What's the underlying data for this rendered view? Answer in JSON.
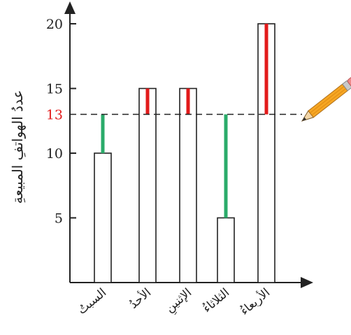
{
  "chart_data": {
    "type": "bar",
    "ylabel": "عددُ الهواتفِ المبيعةِ",
    "categories": [
      "السبتُ",
      "الأحدُ",
      "الإثنينِ",
      "الثلاثاءُ",
      "الأربعاءُ"
    ],
    "values": [
      10,
      15,
      15,
      5,
      20
    ],
    "ylim": [
      0,
      21
    ],
    "yticks": [
      5,
      10,
      15,
      20
    ],
    "reference_line": {
      "value": 13,
      "label": "13",
      "color": "#e21a1a"
    },
    "colors": {
      "above": "#e21a1a",
      "below": "#2bab6a",
      "bar_fill": "#ffffff",
      "bar_stroke": "#222222"
    },
    "grid": false
  },
  "decoration": {
    "icon": "pencil-icon"
  }
}
